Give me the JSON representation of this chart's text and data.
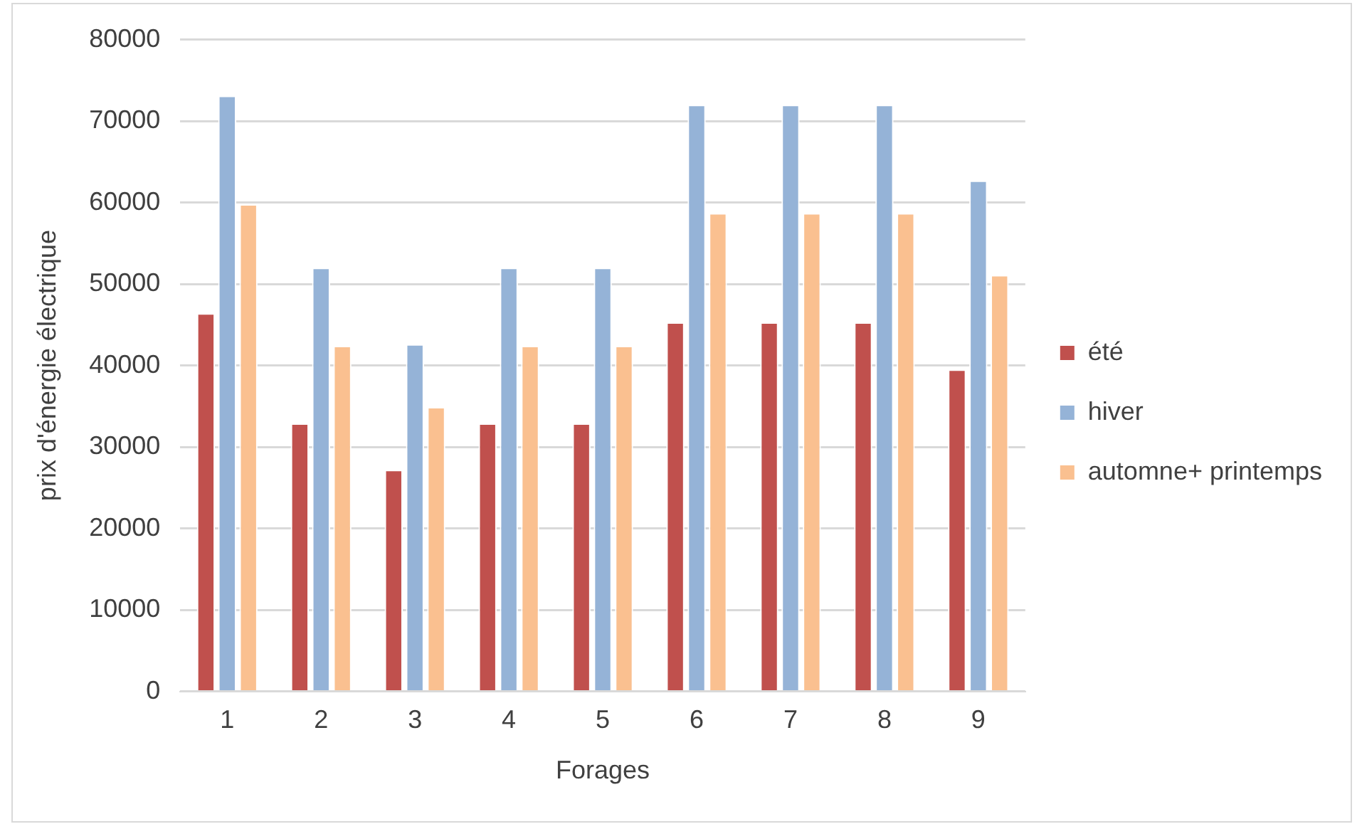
{
  "chart_data": {
    "type": "bar",
    "xlabel": "Forages",
    "ylabel": "prix d'énergie électrique",
    "categories": [
      "1",
      "2",
      "3",
      "4",
      "5",
      "6",
      "7",
      "8",
      "9"
    ],
    "series": [
      {
        "name": "été",
        "color": "#c0504d",
        "values": [
          46400,
          32900,
          27200,
          32900,
          32900,
          45300,
          45300,
          45300,
          39500
        ]
      },
      {
        "name": "hiver",
        "color": "#95b3d7",
        "values": [
          73100,
          52000,
          42600,
          52000,
          52000,
          72000,
          72000,
          72000,
          62700
        ]
      },
      {
        "name": "automne+ printemps",
        "color": "#fac090",
        "values": [
          59800,
          42400,
          34900,
          42400,
          42400,
          58700,
          58700,
          58700,
          51100
        ]
      }
    ],
    "ylim": [
      0,
      80000
    ],
    "yticks": [
      0,
      10000,
      20000,
      30000,
      40000,
      50000,
      60000,
      70000,
      80000
    ],
    "grid": "y",
    "legend": "right"
  }
}
